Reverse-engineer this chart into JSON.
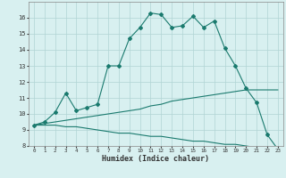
{
  "xlabel": "Humidex (Indice chaleur)",
  "x_values": [
    0,
    1,
    2,
    3,
    4,
    5,
    6,
    7,
    8,
    9,
    10,
    11,
    12,
    13,
    14,
    15,
    16,
    17,
    18,
    19,
    20,
    21,
    22,
    23
  ],
  "line1_y": [
    9.3,
    9.5,
    10.1,
    11.3,
    10.2,
    10.4,
    10.6,
    13.0,
    13.0,
    14.7,
    15.4,
    16.3,
    16.2,
    15.4,
    15.5,
    16.1,
    15.4,
    15.8,
    14.1,
    13.0,
    11.6,
    10.7,
    8.7,
    7.8
  ],
  "line2_y": [
    9.3,
    9.4,
    9.5,
    9.6,
    9.7,
    9.8,
    9.9,
    10.0,
    10.1,
    10.2,
    10.3,
    10.5,
    10.6,
    10.8,
    10.9,
    11.0,
    11.1,
    11.2,
    11.3,
    11.4,
    11.5,
    11.5,
    11.5,
    11.5
  ],
  "line3_y": [
    9.3,
    9.3,
    9.3,
    9.2,
    9.2,
    9.1,
    9.0,
    8.9,
    8.8,
    8.8,
    8.7,
    8.6,
    8.6,
    8.5,
    8.4,
    8.3,
    8.3,
    8.2,
    8.1,
    8.1,
    8.0,
    7.9,
    7.85,
    7.8
  ],
  "line_color": "#1a7a6e",
  "bg_color": "#d8f0f0",
  "grid_color": "#b0d4d4",
  "ylim": [
    8,
    17
  ],
  "xlim": [
    -0.5,
    23.5
  ],
  "yticks": [
    8,
    9,
    10,
    11,
    12,
    13,
    14,
    15,
    16
  ],
  "xticks": [
    0,
    1,
    2,
    3,
    4,
    5,
    6,
    7,
    8,
    9,
    10,
    11,
    12,
    13,
    14,
    15,
    16,
    17,
    18,
    19,
    20,
    21,
    22,
    23
  ]
}
